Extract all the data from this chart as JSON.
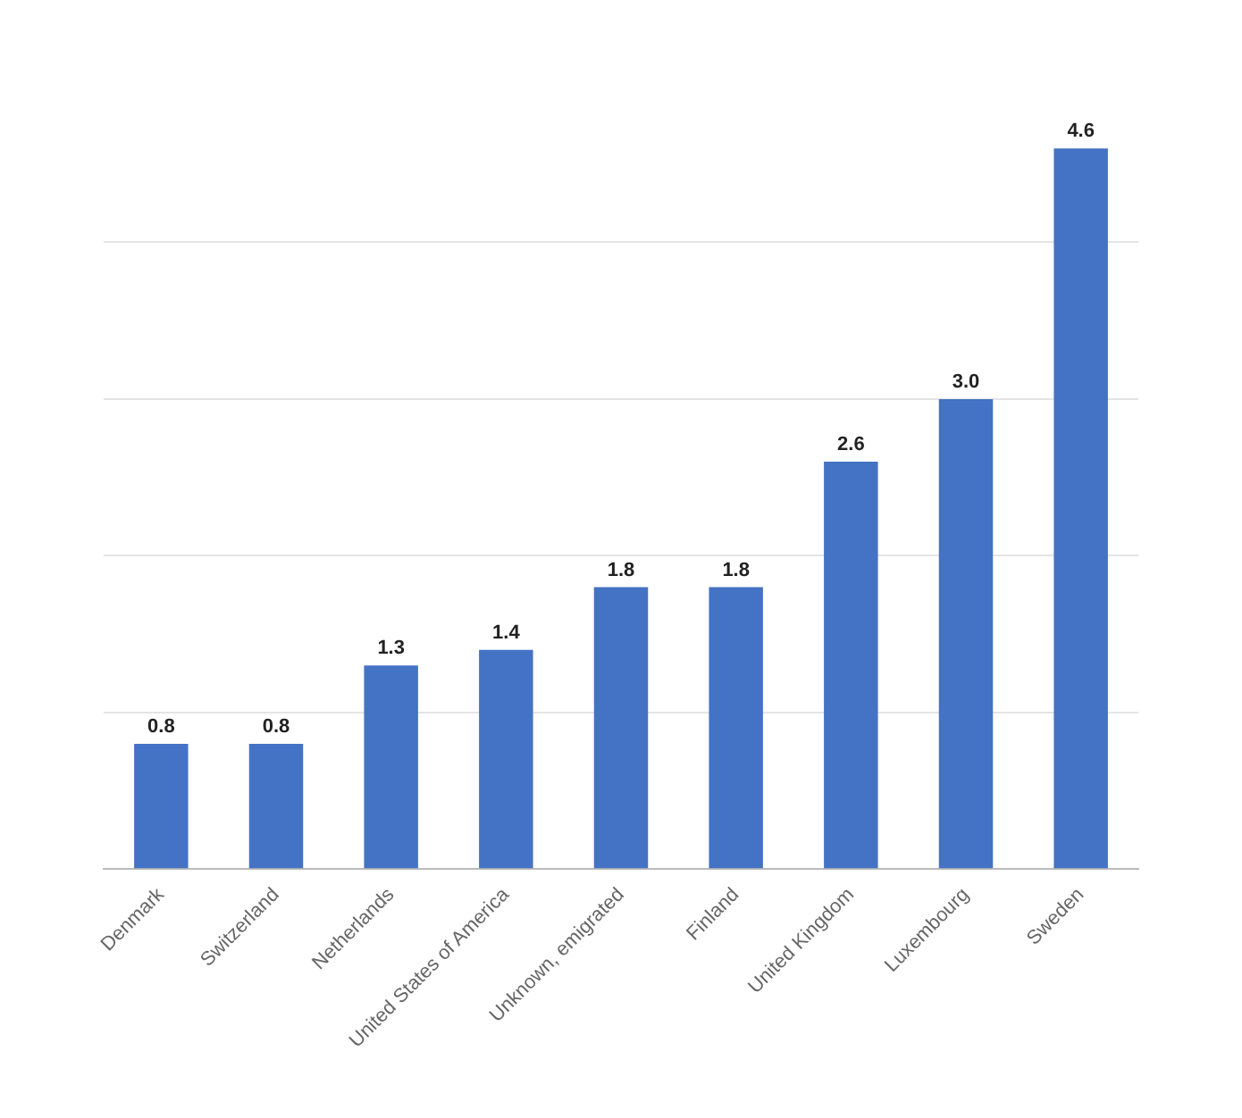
{
  "chart_data": {
    "type": "bar",
    "categories": [
      "Denmark",
      "Switzerland",
      "Netherlands",
      "United States of America",
      "Unknown, emigrated",
      "Finland",
      "United Kingdom",
      "Luxembourg",
      "Sweden"
    ],
    "values": [
      0.8,
      0.8,
      1.3,
      1.4,
      1.8,
      1.8,
      2.6,
      3.0,
      4.6
    ],
    "color": "#4472c4",
    "value_labels": [
      "0.8",
      "0.8",
      "1.3",
      "1.4",
      "1.8",
      "1.8",
      "2.6",
      "3.0",
      "4.6"
    ],
    "yticks": [
      {
        "value": 0,
        "label": null
      },
      {
        "value": 1,
        "label": null
      },
      {
        "value": 2,
        "label": null
      },
      {
        "value": 3,
        "label": null
      },
      {
        "value": 4,
        "label": null
      }
    ],
    "tick_labels": "x",
    "grid": "y"
  }
}
